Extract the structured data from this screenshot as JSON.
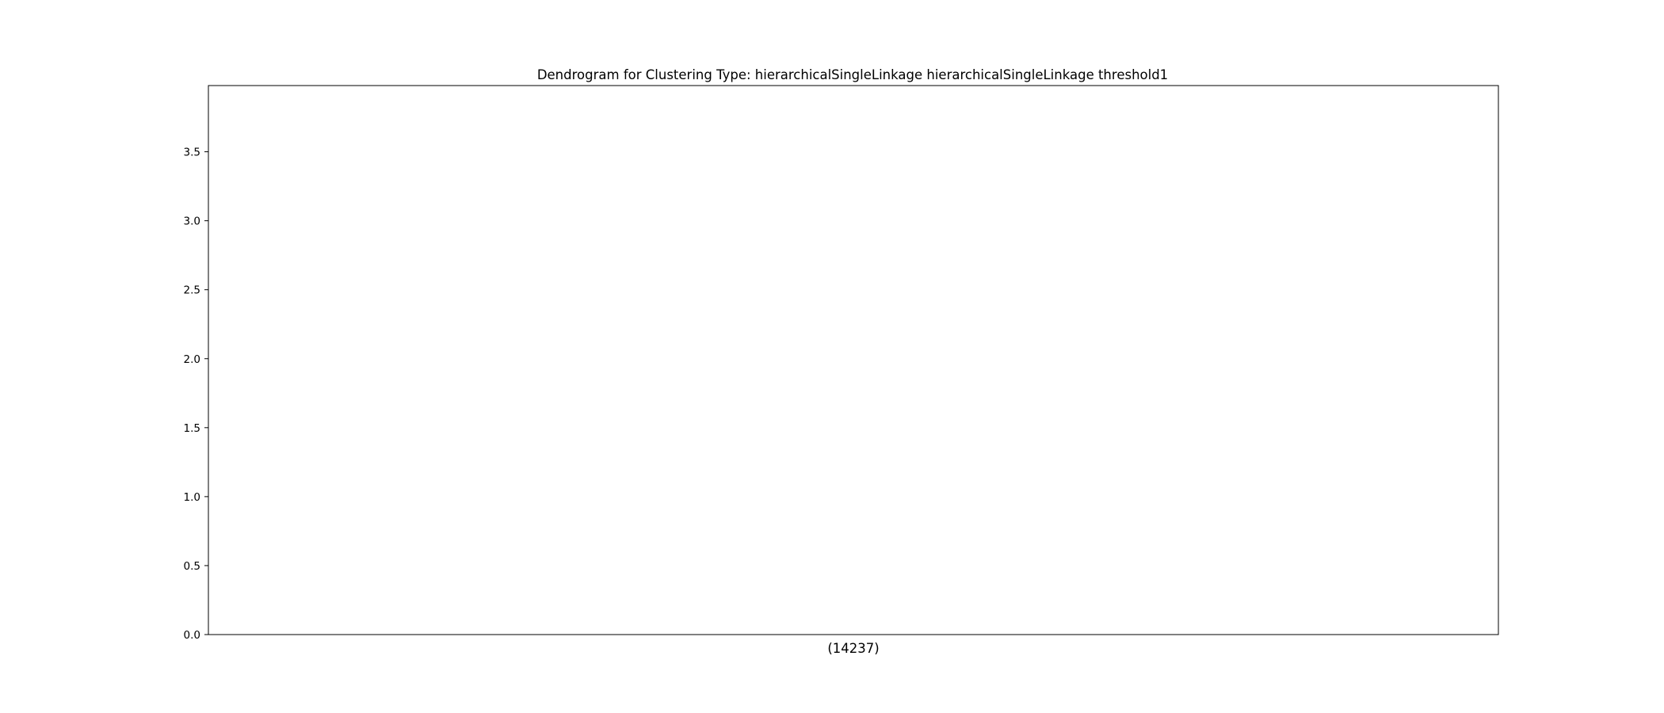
{
  "chart_data": {
    "type": "dendrogram",
    "title": "Dendrogram for Clustering Type: hierarchicalSingleLinkage hierarchicalSingleLinkage threshold1",
    "xlabel": "",
    "ylabel": "",
    "ylim": [
      0,
      3.98
    ],
    "yticks": [
      0.0,
      0.5,
      1.0,
      1.5,
      2.0,
      2.5,
      3.0,
      3.5
    ],
    "ytick_labels": [
      "0.0",
      "0.5",
      "1.0",
      "1.5",
      "2.0",
      "2.5",
      "3.0",
      "3.5"
    ],
    "leaves": [
      {
        "label": "(14237)",
        "x": 0.5
      }
    ],
    "xlim": [
      0,
      1
    ],
    "grid": false,
    "links": []
  },
  "colors": {
    "axis": "#000000",
    "background": "#ffffff"
  }
}
